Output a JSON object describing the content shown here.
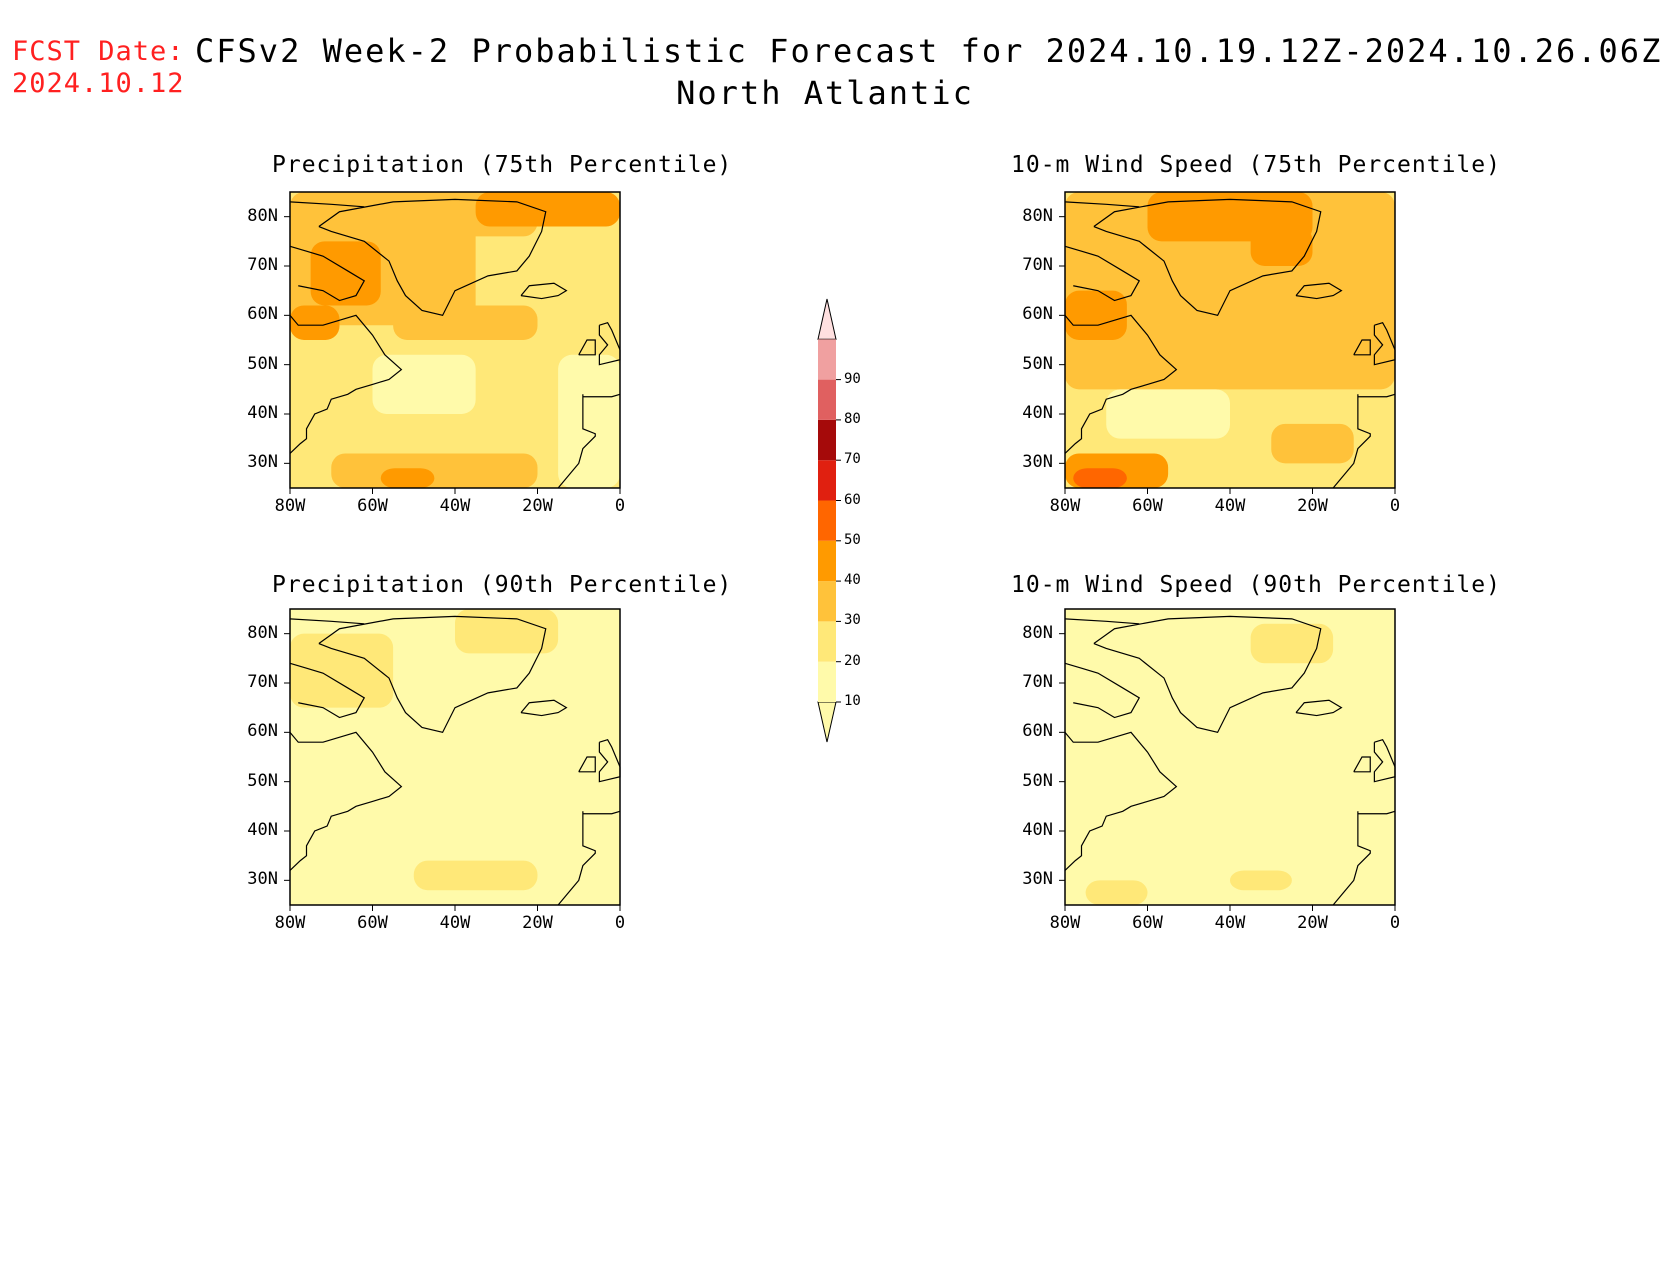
{
  "header": {
    "fcst_label": "FCST Date:",
    "fcst_date": "2024.10.12",
    "title": "CFSv2 Week-2 Probabilistic Forecast for 2024.10.19.12Z-2024.10.26.06Z",
    "subtitle": "North Atlantic"
  },
  "colors": {
    "land_outline": "#000000",
    "scale": [
      "#fffaaa",
      "#ffe878",
      "#ffc23a",
      "#ff9a00",
      "#ff6600",
      "#e02010",
      "#a50a0a",
      "#e06060",
      "#f0a0a0",
      "#ffe0e0"
    ]
  },
  "chart_data": [
    {
      "type": "heatmap",
      "title": "Precipitation (75th Percentile)",
      "x_ticks": [
        "80W",
        "60W",
        "40W",
        "20W",
        "0"
      ],
      "y_ticks": [
        "80N",
        "70N",
        "60N",
        "50N",
        "40N",
        "30N"
      ],
      "xlim": [
        -80,
        0
      ],
      "ylim": [
        25,
        85
      ],
      "regions": [
        {
          "level": 30,
          "desc": "orange band along north Canada / Greenland"
        },
        {
          "level": 40,
          "desc": "north Greenland coast and Baffin Bay"
        },
        {
          "level": 20,
          "desc": "North Atlantic mid-latitudes"
        },
        {
          "level": 30,
          "desc": "subtropical band near 30N, 60W-30W"
        }
      ]
    },
    {
      "type": "heatmap",
      "title": "10-m Wind Speed (75th Percentile)",
      "x_ticks": [
        "80W",
        "60W",
        "40W",
        "20W",
        "0"
      ],
      "y_ticks": [
        "80N",
        "70N",
        "60N",
        "50N",
        "40N",
        "30N"
      ],
      "xlim": [
        -80,
        0
      ],
      "ylim": [
        25,
        85
      ],
      "regions": [
        {
          "level": 30,
          "desc": "broad orange over North Atlantic and Greenland"
        },
        {
          "level": 40,
          "desc": "north Greenland, Labrador coast"
        },
        {
          "level": 50,
          "desc": "subtropical band near 28N, 80W-60W"
        }
      ]
    },
    {
      "type": "heatmap",
      "title": "Precipitation (90th Percentile)",
      "x_ticks": [
        "80W",
        "60W",
        "40W",
        "20W",
        "0"
      ],
      "y_ticks": [
        "80N",
        "70N",
        "60N",
        "50N",
        "40N",
        "30N"
      ],
      "xlim": [
        -80,
        0
      ],
      "ylim": [
        25,
        85
      ],
      "regions": [
        {
          "level": 10,
          "desc": "pale yellow over most of the domain"
        },
        {
          "level": 20,
          "desc": "small patches near north Greenland"
        }
      ]
    },
    {
      "type": "heatmap",
      "title": "10-m Wind Speed (90th Percentile)",
      "x_ticks": [
        "80W",
        "60W",
        "40W",
        "20W",
        "0"
      ],
      "y_ticks": [
        "80N",
        "70N",
        "60N",
        "50N",
        "40N",
        "30N"
      ],
      "xlim": [
        -80,
        0
      ],
      "ylim": [
        25,
        85
      ],
      "regions": [
        {
          "level": 10,
          "desc": "pale yellow over most of the domain"
        },
        {
          "level": 20,
          "desc": "patches near Greenland and subtropics"
        }
      ]
    }
  ],
  "colorbar": {
    "labels": [
      "90",
      "80",
      "70",
      "60",
      "50",
      "40",
      "30",
      "20",
      "10"
    ]
  }
}
